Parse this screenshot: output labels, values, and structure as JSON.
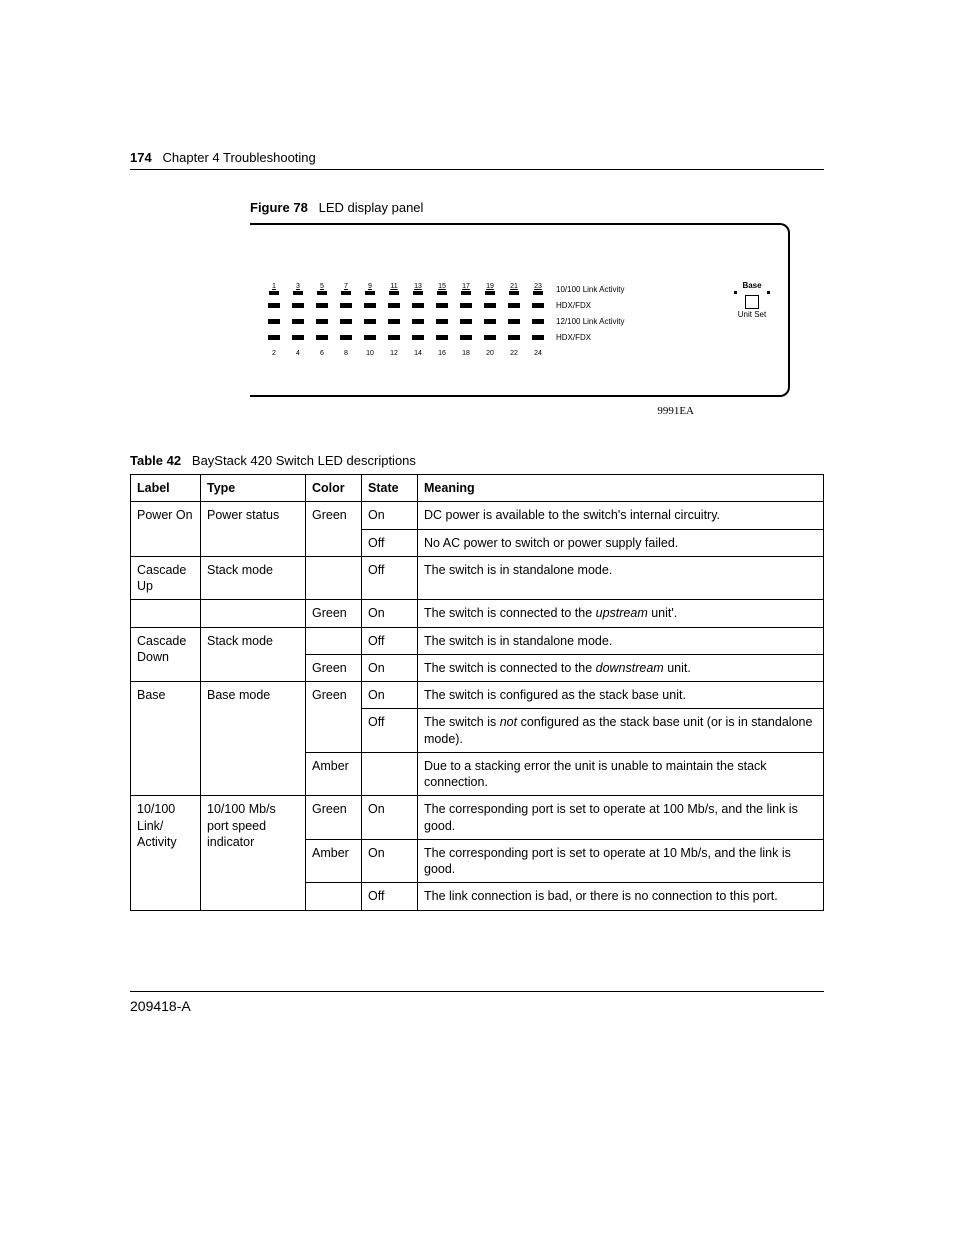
{
  "header": {
    "page_number": "174",
    "chapter": "Chapter 4  Troubleshooting"
  },
  "figure": {
    "label": "Figure 78",
    "title": "LED display panel",
    "code": "9991EA",
    "ports_top": [
      "1",
      "3",
      "5",
      "7",
      "9",
      "11",
      "13",
      "15",
      "17",
      "19",
      "21",
      "23"
    ],
    "ports_bottom": [
      "2",
      "4",
      "6",
      "8",
      "10",
      "12",
      "14",
      "16",
      "18",
      "20",
      "22",
      "24"
    ],
    "row_labels": [
      "10/100 Link Activity",
      "HDX/FDX",
      "12/100 Link Activity",
      "HDX/FDX"
    ],
    "base": {
      "label": "Base",
      "left": "Unit",
      "right": "Set"
    }
  },
  "table": {
    "label": "Table 42",
    "title": "BayStack 420 Switch LED descriptions",
    "headers": [
      "Label",
      "Type",
      "Color",
      "State",
      "Meaning"
    ],
    "rows": [
      {
        "label": "Power On",
        "type": "Power status",
        "color": "Green",
        "state": "On",
        "meaning": "DC power is available to the switch's internal circuitry."
      },
      {
        "label": "",
        "type": "",
        "color": "",
        "state": "Off",
        "meaning": "No AC power to switch or power supply failed."
      },
      {
        "label": "Cascade Up",
        "type": "Stack mode",
        "color": "",
        "state": "Off",
        "meaning": "The switch is in standalone mode."
      },
      {
        "label": "",
        "type": "",
        "color": "Green",
        "state": "On",
        "meaning_pre": "The switch is connected to the ",
        "meaning_em": "upstream",
        "meaning_post": " unit'."
      },
      {
        "label": "Cascade Down",
        "type": "Stack mode",
        "color": "",
        "state": "Off",
        "meaning": "The switch is in standalone mode."
      },
      {
        "label": "",
        "type": "",
        "color": "Green",
        "state": "On",
        "meaning_pre": "The switch is connected to the ",
        "meaning_em": "downstream",
        "meaning_post": " unit."
      },
      {
        "label": "Base",
        "type": "Base mode",
        "color": "Green",
        "state": "On",
        "meaning": "The switch is configured as the stack base unit."
      },
      {
        "label": "",
        "type": "",
        "color": "",
        "state": "Off",
        "meaning_pre": "The switch is ",
        "meaning_em": "not",
        "meaning_post": " configured as the stack base unit (or is in standalone mode)."
      },
      {
        "label": "",
        "type": "",
        "color": "Amber",
        "state": "",
        "meaning": "Due to a stacking error the unit is unable to maintain the stack connection."
      },
      {
        "label": "10/100 Link/ Activity",
        "type": "10/100 Mb/s port speed indicator",
        "color": "Green",
        "state": "On",
        "meaning": "The corresponding port is set to operate at 100 Mb/s, and the link is good."
      },
      {
        "label": "",
        "type": "",
        "color": "Amber",
        "state": "On",
        "meaning": "The corresponding port is set to operate at 10 Mb/s, and the link is good."
      },
      {
        "label": "",
        "type": "",
        "color": "",
        "state": "Off",
        "meaning": "The link connection is bad, or there is no connection to this port."
      }
    ]
  },
  "footer": {
    "doc_id": "209418-A"
  }
}
